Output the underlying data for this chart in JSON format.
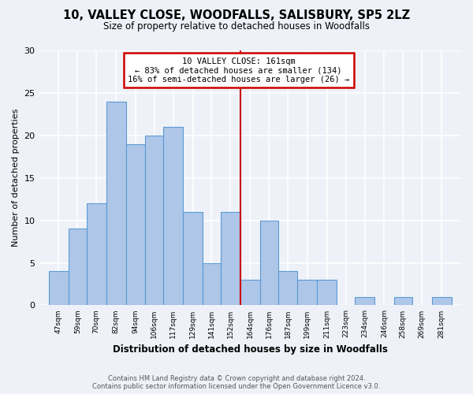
{
  "title": "10, VALLEY CLOSE, WOODFALLS, SALISBURY, SP5 2LZ",
  "subtitle": "Size of property relative to detached houses in Woodfalls",
  "xlabel": "Distribution of detached houses by size in Woodfalls",
  "ylabel": "Number of detached properties",
  "bin_labels": [
    "47sqm",
    "59sqm",
    "70sqm",
    "82sqm",
    "94sqm",
    "106sqm",
    "117sqm",
    "129sqm",
    "141sqm",
    "152sqm",
    "164sqm",
    "176sqm",
    "187sqm",
    "199sqm",
    "211sqm",
    "223sqm",
    "234sqm",
    "246sqm",
    "258sqm",
    "269sqm",
    "281sqm"
  ],
  "bar_heights": [
    4,
    9,
    12,
    24,
    19,
    20,
    21,
    11,
    5,
    11,
    3,
    10,
    4,
    3,
    3,
    0,
    1,
    0,
    1,
    0,
    1
  ],
  "bar_color": "#aec6e8",
  "bar_edgecolor": "#5b9bd5",
  "property_line_x": 164,
  "annotation_title": "10 VALLEY CLOSE: 161sqm",
  "annotation_line1": "← 83% of detached houses are smaller (134)",
  "annotation_line2": "16% of semi-detached houses are larger (26) →",
  "annotation_box_color": "#ffffff",
  "annotation_box_edgecolor": "#cc0000",
  "vline_color": "#cc0000",
  "ylim": [
    0,
    30
  ],
  "yticks": [
    0,
    5,
    10,
    15,
    20,
    25,
    30
  ],
  "footer_line1": "Contains HM Land Registry data © Crown copyright and database right 2024.",
  "footer_line2": "Contains public sector information licensed under the Open Government Licence v3.0.",
  "bg_color": "#eef2f8",
  "plot_bg_color": "#eef2f8",
  "grid_color": "#ffffff",
  "bin_edges": [
    47,
    59,
    70,
    82,
    94,
    106,
    117,
    129,
    141,
    152,
    164,
    176,
    187,
    199,
    211,
    223,
    234,
    246,
    258,
    269,
    281,
    293
  ]
}
